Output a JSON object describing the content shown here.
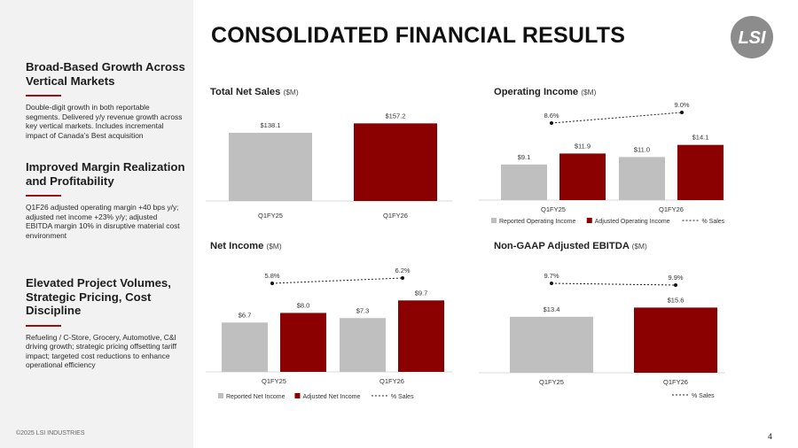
{
  "page": {
    "title": "CONSOLIDATED FINANCIAL RESULTS",
    "page_number": "4",
    "copyright": "©2025 LSI INDUSTRIES"
  },
  "logo": {
    "text": "LSI"
  },
  "sidebar": {
    "sections": [
      {
        "heading": "Broad-Based Growth Across Vertical Markets",
        "body": "Double-digit growth in both reportable segments.  Delivered y/y revenue growth across key vertical markets.  Includes incremental impact of Canada’s Best acquisition"
      },
      {
        "heading": "Improved Margin Realization and Profitability",
        "body": "Q1F26 adjusted operating margin +40 bps y/y; adjusted net income +23% y/y; adjusted EBITDA margin 10% in disruptive material cost environment"
      },
      {
        "heading": "Elevated Project Volumes, Strategic Pricing, Cost Discipline",
        "body": "Refueling / C-Store, Grocery, Automotive, C&I driving growth; strategic pricing offsetting tariff impact; targeted cost reductions to enhance operational efficiency"
      }
    ]
  },
  "colors": {
    "gray": "#bfbfbf",
    "red": "#8b0000",
    "accent": "#9a0e14"
  },
  "chart_titles": {
    "sales": {
      "main": "Total Net Sales",
      "unit": "($M)"
    },
    "opinc": {
      "main": "Operating Income",
      "unit": "($M)"
    },
    "netinc": {
      "main": "Net Income",
      "unit": "($M)"
    },
    "ebitda": {
      "main": "Non-GAAP Adjusted EBITDA",
      "unit": "($M)"
    }
  },
  "chart_data": [
    {
      "id": "sales",
      "type": "bar",
      "title": "Total Net Sales ($M)",
      "categories": [
        "Q1FY25",
        "Q1FY26"
      ],
      "series": [
        {
          "values": [
            138.1,
            157.2
          ],
          "labels": [
            "$138.1",
            "$157.2"
          ],
          "colors": [
            "#bfbfbf",
            "#8b0000"
          ]
        }
      ],
      "ylim": [
        0,
        165
      ],
      "grid": false,
      "legend": null
    },
    {
      "id": "opinc",
      "type": "bar",
      "title": "Operating Income ($M)",
      "categories": [
        "Q1FY25",
        "Q1FY26"
      ],
      "series": [
        {
          "name": "Reported Operating Income",
          "values": [
            9.1,
            11.0
          ],
          "labels": [
            "$9.1",
            "$11.0"
          ],
          "color": "#bfbfbf"
        },
        {
          "name": "Adjusted Operating Income",
          "values": [
            11.9,
            14.1
          ],
          "labels": [
            "$11.9",
            "$14.1"
          ],
          "color": "#8b0000"
        }
      ],
      "line": {
        "name": "% Sales",
        "labels": [
          "8.6%",
          "9.0%"
        ]
      },
      "ylim": [
        0,
        19
      ],
      "grid": false,
      "legend": "bottom"
    },
    {
      "id": "netinc",
      "type": "bar",
      "title": "Net Income ($M)",
      "categories": [
        "Q1FY25",
        "Q1FY26"
      ],
      "series": [
        {
          "name": "Reported Net Income",
          "values": [
            6.7,
            7.3
          ],
          "labels": [
            "$6.7",
            "$7.3"
          ],
          "color": "#bfbfbf"
        },
        {
          "name": "Adjusted Net Income",
          "values": [
            8.0,
            9.7
          ],
          "labels": [
            "$8.0",
            "$9.7"
          ],
          "color": "#8b0000"
        }
      ],
      "line": {
        "name": "% Sales",
        "labels": [
          "5.8%",
          "6.2%"
        ]
      },
      "ylim": [
        0,
        12.5
      ],
      "grid": false,
      "legend": "bottom"
    },
    {
      "id": "ebitda",
      "type": "bar",
      "title": "Non-GAAP Adjusted EBITDA ($M)",
      "categories": [
        "Q1FY25",
        "Q1FY26"
      ],
      "series": [
        {
          "values": [
            13.4,
            15.6
          ],
          "labels": [
            "$13.4",
            "$15.6"
          ],
          "colors": [
            "#bfbfbf",
            "#8b0000"
          ]
        }
      ],
      "line": {
        "name": "% Sales",
        "labels": [
          "9.7%",
          "9.9%"
        ]
      },
      "ylim": [
        0,
        19.5
      ],
      "grid": false,
      "legend": "bottom-right"
    }
  ]
}
